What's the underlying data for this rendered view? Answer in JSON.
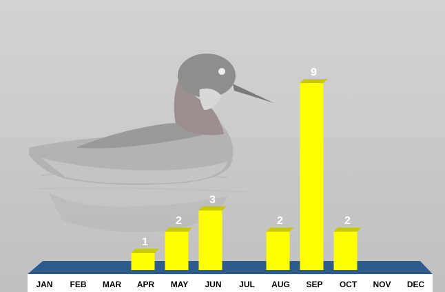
{
  "chart_data": {
    "type": "bar",
    "title": "",
    "xlabel": "",
    "ylabel": "",
    "categories": [
      "JAN",
      "FEB",
      "MAR",
      "APR",
      "MAY",
      "JUN",
      "JUL",
      "AUG",
      "SEP",
      "OCT",
      "NOV",
      "DEC"
    ],
    "values": [
      0,
      0,
      0,
      1,
      2,
      3,
      0,
      2,
      9,
      2,
      0,
      0
    ],
    "data_labels": [
      "",
      "",
      "",
      "1",
      "2",
      "3",
      "",
      "2",
      "9",
      "2",
      "",
      ""
    ],
    "ylim": [
      0,
      9
    ],
    "grid": false,
    "legend": "none",
    "bar_color": "#ffff00",
    "floor_color": "#2e5a8c",
    "axis_band_color": "#ffffff",
    "background": "photo of a red-necked phalarope swimming, washed out in grey mist"
  }
}
